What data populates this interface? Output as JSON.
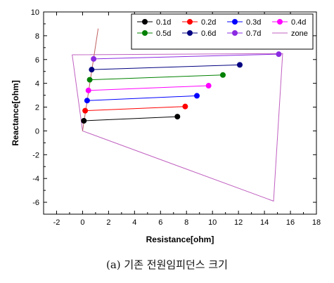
{
  "chart_data": {
    "type": "scatter",
    "xlabel": "Resistance[ohm]",
    "ylabel": "Reactance[ohm]",
    "xlim": [
      -3,
      18
    ],
    "ylim": [
      -7,
      10
    ],
    "xticks": [
      -2,
      0,
      2,
      4,
      6,
      8,
      10,
      12,
      14,
      16,
      18
    ],
    "yticks": [
      -6,
      -4,
      -2,
      0,
      2,
      4,
      6,
      8,
      10
    ],
    "grid": false,
    "legend_position": "top-right",
    "series": [
      {
        "name": "0.1d",
        "color": "#000000",
        "x": [
          0.1,
          7.3
        ],
        "y": [
          0.85,
          1.2
        ]
      },
      {
        "name": "0.2d",
        "color": "#ff0000",
        "x": [
          0.2,
          7.9
        ],
        "y": [
          1.7,
          2.05
        ]
      },
      {
        "name": "0.3d",
        "color": "#0000ff",
        "x": [
          0.35,
          8.8
        ],
        "y": [
          2.55,
          2.95
        ]
      },
      {
        "name": "0.4d",
        "color": "#ff00ff",
        "x": [
          0.45,
          9.7
        ],
        "y": [
          3.4,
          3.8
        ]
      },
      {
        "name": "0.5d",
        "color": "#008000",
        "x": [
          0.55,
          10.8
        ],
        "y": [
          4.3,
          4.7
        ]
      },
      {
        "name": "0.6d",
        "color": "#000080",
        "x": [
          0.7,
          12.1
        ],
        "y": [
          5.15,
          5.55
        ]
      },
      {
        "name": "0.7d",
        "color": "#8a2be2",
        "x": [
          0.85,
          15.1
        ],
        "y": [
          6.05,
          6.45
        ]
      }
    ],
    "zone": {
      "name": "zone",
      "color": "#c060c0",
      "polygon": [
        [
          -0.8,
          6.4
        ],
        [
          15.4,
          6.5
        ],
        [
          14.7,
          -5.9
        ],
        [
          0.0,
          0.0
        ],
        [
          -0.8,
          6.4
        ]
      ]
    },
    "line_angle": {
      "color": "#c06060",
      "x": [
        0.0,
        1.2
      ],
      "y": [
        0.0,
        8.6
      ]
    }
  },
  "caption": "(a) 기존 전원임피던스 크기"
}
